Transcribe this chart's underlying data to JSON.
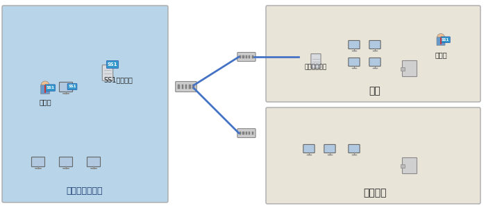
{
  "bg_color": "#ffffff",
  "left_box_color": "#b8d4e8",
  "left_box_label": "総合住宅研究所",
  "right_top_box_color": "#e8e4d8",
  "right_top_box_label": "本社",
  "right_bot_box_color": "#e8e4d8",
  "right_bot_box_label": "東京支社",
  "ss1_server_label": "SS1サーバー",
  "manager_label_left": "管理者",
  "manager_label_right": "管理者",
  "collection_server_label": "収集サーバー",
  "line_color": "#4472c4",
  "line_width": 2.0
}
